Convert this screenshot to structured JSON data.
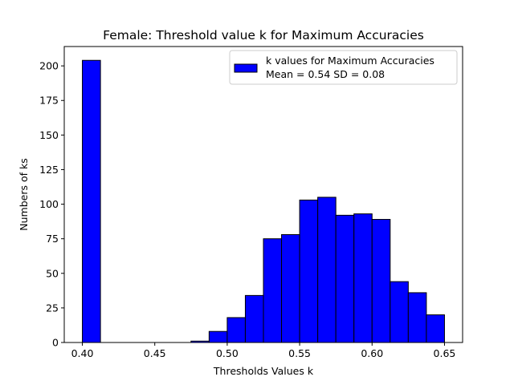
{
  "chart_data": {
    "type": "bar",
    "title": "Female: Threshold value k for Maximum Accuracies",
    "xlabel": "Thresholds Values k",
    "ylabel": "Numbers of ks",
    "bin_width": 0.0125,
    "bins": [
      {
        "x0": 0.4,
        "count": 204
      },
      {
        "x0": 0.4125,
        "count": 0
      },
      {
        "x0": 0.425,
        "count": 0
      },
      {
        "x0": 0.4375,
        "count": 0
      },
      {
        "x0": 0.45,
        "count": 0
      },
      {
        "x0": 0.4625,
        "count": 0
      },
      {
        "x0": 0.475,
        "count": 1
      },
      {
        "x0": 0.4875,
        "count": 8
      },
      {
        "x0": 0.5,
        "count": 18
      },
      {
        "x0": 0.5125,
        "count": 34
      },
      {
        "x0": 0.525,
        "count": 75
      },
      {
        "x0": 0.5375,
        "count": 78
      },
      {
        "x0": 0.55,
        "count": 103
      },
      {
        "x0": 0.5625,
        "count": 105
      },
      {
        "x0": 0.575,
        "count": 92
      },
      {
        "x0": 0.5875,
        "count": 93
      },
      {
        "x0": 0.6,
        "count": 89
      },
      {
        "x0": 0.6125,
        "count": 44
      },
      {
        "x0": 0.625,
        "count": 36
      },
      {
        "x0": 0.6375,
        "count": 20
      }
    ],
    "xlim": [
      0.3875,
      0.6625
    ],
    "ylim": [
      0,
      214
    ],
    "xticks": [
      "0.40",
      "0.45",
      "0.50",
      "0.55",
      "0.60",
      "0.65"
    ],
    "xtick_values": [
      0.4,
      0.45,
      0.5,
      0.55,
      0.6,
      0.65
    ],
    "yticks": [
      "0",
      "25",
      "50",
      "75",
      "100",
      "125",
      "150",
      "175",
      "200"
    ],
    "ytick_values": [
      0,
      25,
      50,
      75,
      100,
      125,
      150,
      175,
      200
    ],
    "bar_color": "#0000ff",
    "edge_color": "#000000",
    "grid": false,
    "legend": {
      "placement": "top-right",
      "entries": [
        {
          "line1": "k values for Maximum Accuracies",
          "line2": "Mean = 0.54 SD = 0.08"
        }
      ]
    }
  }
}
